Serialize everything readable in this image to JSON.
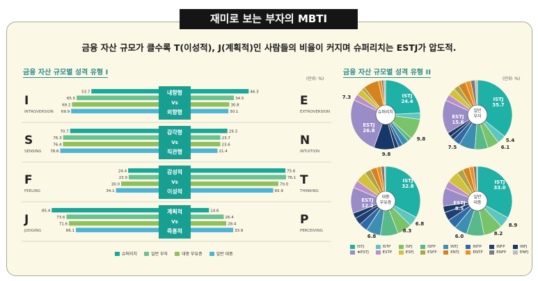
{
  "title": "재미로 보는 부자의 MBTI",
  "headline": "금융 자산 규모가 클수록 T(이성적), J(계획적)인 사람들의 비율이 커지며 슈퍼리치는 ESTJ가 압도적.",
  "section1_title": "금융 자산 규모별 성격 유형 I",
  "section2_title": "금융 자산 규모별 성격 유형 II",
  "unit": "(단위: %)",
  "colors": {
    "super_rich": "#17a79b",
    "general_rich": "#68c292",
    "mass_affluent": "#8fc05a",
    "general_public": "#4cb4d6"
  },
  "chart_data": [
    {
      "type": "bar",
      "title": "금융 자산 규모별 성격 유형 I",
      "series_names": [
        "슈퍼리치",
        "일반 부자",
        "대중 부유층",
        "일반 대중"
      ],
      "groups": [
        {
          "left_letter": "I",
          "left_word": "INTROVERSION",
          "right_letter": "E",
          "right_word": "EXTROVERSION",
          "center": [
            "내향형",
            "Vs",
            "외향형"
          ],
          "left": [
            53.7,
            65.5,
            69.2,
            69.9
          ],
          "right": [
            46.3,
            34.5,
            30.8,
            30.1
          ]
        },
        {
          "left_letter": "S",
          "left_word": "SENSING",
          "right_letter": "N",
          "right_word": "INTUITION",
          "center": [
            "감각형",
            "Vs",
            "직관형"
          ],
          "left": [
            70.7,
            76.3,
            76.4,
            78.6
          ],
          "right": [
            29.3,
            23.7,
            23.6,
            21.4
          ]
        },
        {
          "left_letter": "F",
          "left_word": "FEELING",
          "right_letter": "T",
          "right_word": "THINKING",
          "center": [
            "감성적",
            "Vs",
            "이성적"
          ],
          "left": [
            24.4,
            23.9,
            30.0,
            34.1
          ],
          "right": [
            75.6,
            76.1,
            70.0,
            65.9
          ]
        },
        {
          "left_letter": "J",
          "left_word": "JUDGING",
          "right_letter": "P",
          "right_word": "PERCEIVING",
          "center": [
            "계획적",
            "Vs",
            "즉흥적"
          ],
          "left": [
            85.4,
            73.6,
            71.6,
            66.1
          ],
          "right": [
            14.6,
            26.4,
            28.4,
            33.9
          ]
        }
      ]
    },
    {
      "type": "pie",
      "title": "금융 자산 규모별 성격 유형 II",
      "categories": [
        "ISTJ",
        "ISTP",
        "ISFJ",
        "ISFP",
        "INTJ",
        "INTP",
        "INFP",
        "INFJ",
        "ESTJ",
        "ESTP",
        "ESFJ",
        "ESFP",
        "ENTJ",
        "ENTP",
        "ENFP",
        "ENFJ"
      ],
      "category_colors": [
        "#1fb0a6",
        "#5cc6c0",
        "#79c36a",
        "#58b98a",
        "#3c8fb2",
        "#2f6aa8",
        "#1f3f75",
        "#173769",
        "#9a8cc6",
        "#bb8fcf",
        "#d1c23c",
        "#b0a245",
        "#d4841f",
        "#ee9020",
        "#7a7a7a",
        "#bdbdbd"
      ],
      "pies": [
        {
          "name": "슈퍼리치",
          "values": [
            24.4,
            3.0,
            9.8,
            2.0,
            3.0,
            2.0,
            2.0,
            9.8,
            26.8,
            3.0,
            3.0,
            1.5,
            7.3,
            1.5,
            1.0,
            0.9
          ],
          "labels": [
            [
              "ISTJ",
              "24.4"
            ],
            [
              "ESTJ",
              "26.8"
            ],
            [
              "9.8"
            ],
            [
              "9.8"
            ],
            [
              "7.3"
            ]
          ]
        },
        {
          "name": "일반 부자",
          "values": [
            35.7,
            4.0,
            5.4,
            6.1,
            7.5,
            3.5,
            2.0,
            2.0,
            15.6,
            3.0,
            3.5,
            2.5,
            3.5,
            2.5,
            2.0,
            1.2
          ],
          "labels": [
            [
              "ISTJ",
              "35.7"
            ],
            [
              "ESTJ",
              "15.6"
            ],
            [
              "5.4"
            ],
            [
              "6.1"
            ],
            [
              "7.5"
            ]
          ]
        },
        {
          "name": "대중 부유층",
          "values": [
            32.8,
            4.5,
            6.8,
            8.3,
            6.8,
            4.0,
            3.5,
            2.5,
            12.2,
            3.5,
            5.0,
            3.0,
            3.0,
            2.0,
            1.5,
            0.6
          ],
          "labels": [
            [
              "ISTJ",
              "32.8"
            ],
            [
              "ESTJ",
              "12.2"
            ],
            [
              "6.8"
            ],
            [
              "8.3"
            ],
            [
              "6.8"
            ]
          ]
        },
        {
          "name": "일반 대중",
          "values": [
            33.0,
            5.0,
            8.9,
            8.2,
            6.0,
            4.5,
            4.0,
            3.0,
            8.5,
            3.5,
            5.5,
            3.0,
            3.0,
            2.0,
            1.5,
            0.4
          ],
          "labels": [
            [
              "ISTJ",
              "33.0"
            ],
            [
              "ESTJ",
              "8.5"
            ],
            [
              "8.9"
            ],
            [
              "8.2"
            ],
            [
              "6.0"
            ]
          ]
        }
      ],
      "legend": [
        "ISTJ",
        "ISTP",
        "ISFJ",
        "ISFP",
        "INTJ",
        "INTP",
        "INFP",
        "INFJ",
        "★ESTJ",
        "ESTP",
        "ESFJ",
        "ESFP",
        "ENTJ",
        "ENTP",
        "ENFP",
        "ENFJ"
      ]
    }
  ]
}
